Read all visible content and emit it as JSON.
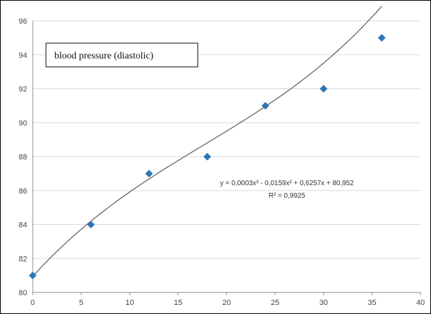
{
  "chart_data": {
    "type": "scatter",
    "title": "blood pressure (diastolic)",
    "xlabel": "",
    "ylabel": "",
    "xlim": [
      0,
      40
    ],
    "ylim": [
      80,
      96
    ],
    "x_ticks": [
      "0",
      "5",
      "10",
      "15",
      "20",
      "25",
      "30",
      "35",
      "40"
    ],
    "y_ticks": [
      "80",
      "82",
      "84",
      "86",
      "88",
      "90",
      "92",
      "94",
      "96"
    ],
    "grid": "horizontal",
    "series": [
      {
        "x": [
          0,
          6,
          12,
          18,
          24,
          30,
          36
        ],
        "y": [
          81,
          84,
          87,
          88,
          91,
          92,
          95
        ],
        "marker": "diamond",
        "color": "#2e75b6"
      }
    ],
    "trendline": {
      "type": "polynomial",
      "order": 3,
      "coefficients": [
        0.0003,
        -0.0159,
        0.6257,
        80.952
      ],
      "color": "#595959",
      "equation": "y = 0,0003x³ - 0,0159x² + 0,6257x + 80,952",
      "r_squared": "R² = 0,9925"
    }
  }
}
